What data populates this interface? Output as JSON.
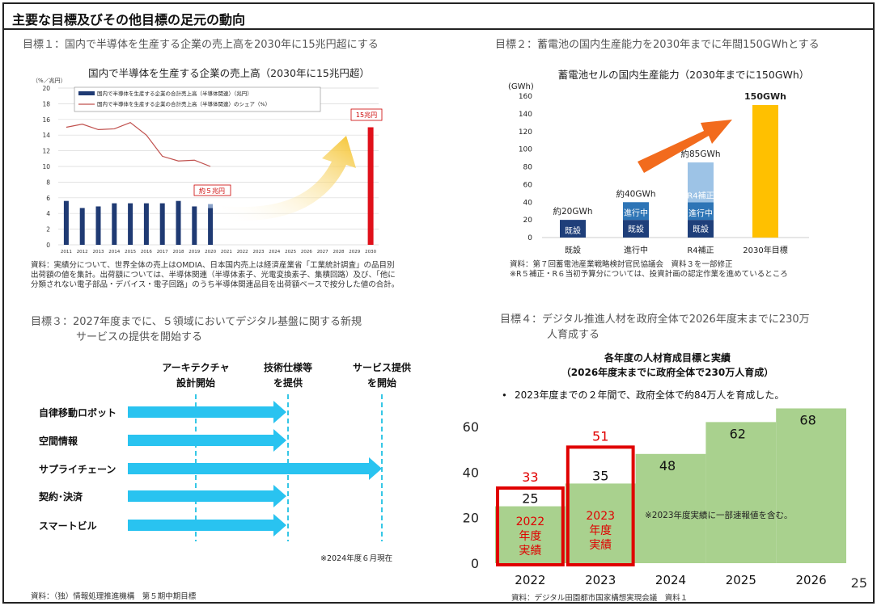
{
  "page": {
    "title": "主要な目標及びその他目標の足元の動向",
    "page_number": "25"
  },
  "goal1": {
    "heading": "目標１：国内で半導体を生産する企業の売上高を2030年に15兆円超にする",
    "source": [
      "資料：実績分について、世界全体の売上はOMDIA、日本国内売上は経済産業省「工業統計調査」の品目別",
      "出荷額の値を集計。出荷額については、半導体関連（半導体素子、光電変換素子、集積回路）及び、「他に",
      "分類されない電子部品・デバイス・電子回路」のうち半導体関連品目を出荷額ベースで按分した値の合計。"
    ]
  },
  "goal2": {
    "heading": "目標２：蓄電池の国内生産能力を2030年までに年間150GWhとする",
    "source": [
      "資料：第７回蓄電池産業戦略検討官民協議会　資料３を一部修正",
      "※R５補正・R６当初予算分については、投資計画の認定作業を進めているところ"
    ]
  },
  "goal3": {
    "heading_line1": "目標３：2027年度までに、５領域においてデジタル基盤に関する新規",
    "heading_line2": "サービスの提供を開始する",
    "milestones": [
      {
        "line1": "アーキテクチャ",
        "line2": "設計開始"
      },
      {
        "line1": "技術仕様等",
        "line2": "を提供"
      },
      {
        "line1": "サービス提供",
        "line2": "を開始"
      }
    ],
    "rows": [
      "自律移動ロボット",
      "空間情報",
      "サプライチェーン",
      "契約･決済",
      "スマートビル"
    ],
    "note": "※2024年度６月現在",
    "source": "資料：（独）情報処理推進機構　第５期中期目標"
  },
  "goal4": {
    "heading_line1": "目標４：デジタル推進人材を政府全体で2026年度末までに230万",
    "heading_line2": "人育成する",
    "source": "資料：デジタル田園都市国家構想実現会議　資料１"
  },
  "chart_data": [
    {
      "type": "bar",
      "title": "国内で半導体を生産する企業の売上高（2030年に15兆円超）",
      "ylabel": "（%／兆円）",
      "ylim": [
        0,
        20
      ],
      "yticks": [
        0,
        2,
        4,
        6,
        8,
        10,
        12,
        14,
        16,
        18,
        20
      ],
      "categories": [
        "2011",
        "2012",
        "2013",
        "2014",
        "2015",
        "2016",
        "2017",
        "2018",
        "2019",
        "2020",
        "2021",
        "2022",
        "2023",
        "2024",
        "2025",
        "2026",
        "2027",
        "2028",
        "2029",
        "2030"
      ],
      "series": [
        {
          "name": "国内で半導体を生産する企業の合計売上高（半導体関連）（兆円）",
          "kind": "bar",
          "color": "#1f3a73",
          "values": [
            5.6,
            4.7,
            4.9,
            5.3,
            5.3,
            5.3,
            5.3,
            5.6,
            4.9,
            4.7,
            null,
            null,
            null,
            null,
            null,
            null,
            null,
            null,
            null,
            15
          ]
        },
        {
          "name": "国内で半導体を生産する企業の合計売上高（半導体関連）のシェア（%）",
          "kind": "line",
          "color": "#c0504d",
          "values": [
            15.0,
            15.4,
            14.7,
            14.8,
            15.6,
            14.0,
            11.3,
            10.7,
            10.8,
            10.0,
            null,
            null,
            null,
            null,
            null,
            null,
            null,
            null,
            null,
            null
          ]
        }
      ],
      "annotations": [
        "約５兆円",
        "15兆円"
      ],
      "target_color": "#e0101a",
      "arrow_color": "#f5c430"
    },
    {
      "type": "bar",
      "title": "蓄電池セルの国内生産能力（2030年までに150GWh）",
      "ylabel": "(GWh)",
      "ylim": [
        0,
        160
      ],
      "yticks": [
        0,
        20,
        40,
        60,
        80,
        100,
        120,
        140,
        160
      ],
      "categories": [
        "既設",
        "進行中",
        "R4補正",
        "2030年目標"
      ],
      "stacks": [
        [
          {
            "label": "既設",
            "value": 20,
            "color": "#1f3f7a"
          }
        ],
        [
          {
            "label": "既設",
            "value": 20,
            "color": "#1f3f7a"
          },
          {
            "label": "進行中",
            "value": 20,
            "color": "#2e75b6"
          }
        ],
        [
          {
            "label": "既設",
            "value": 20,
            "color": "#1f3f7a"
          },
          {
            "label": "進行中",
            "value": 20,
            "color": "#2e75b6"
          },
          {
            "label": "R4補正",
            "value": 45,
            "color": "#9dc3e6"
          }
        ],
        [
          {
            "label": "",
            "value": 150,
            "color": "#ffc000"
          }
        ]
      ],
      "totals": [
        "約20GWh",
        "約40GWh",
        "約85GWh",
        "150GWh"
      ],
      "arrow_color": "#f26b1d"
    },
    {
      "type": "bar",
      "title": "各年度の人材育成目標と実績",
      "subtitle": "（2026年度末までに政府全体で230万人育成）",
      "bullet": "2023年度までの２年間で、政府全体で約84万人を育成した。",
      "ylim": [
        0,
        70
      ],
      "yticks": [
        0,
        20,
        40,
        60
      ],
      "categories": [
        "2022",
        "2023",
        "2024",
        "2025",
        "2026"
      ],
      "targets": [
        25,
        35,
        48,
        62,
        68
      ],
      "actuals": [
        33,
        51,
        null,
        null,
        null
      ],
      "actual_labels": [
        {
          "line1": "2022",
          "line2": "年度",
          "line3": "実績"
        },
        {
          "line1": "2023",
          "line2": "年度",
          "line3": "実績"
        }
      ],
      "note": "※2023年度実績に一部速報値を含む。",
      "bar_color": "#a9d18e",
      "highlight_color": "#e00000"
    }
  ]
}
